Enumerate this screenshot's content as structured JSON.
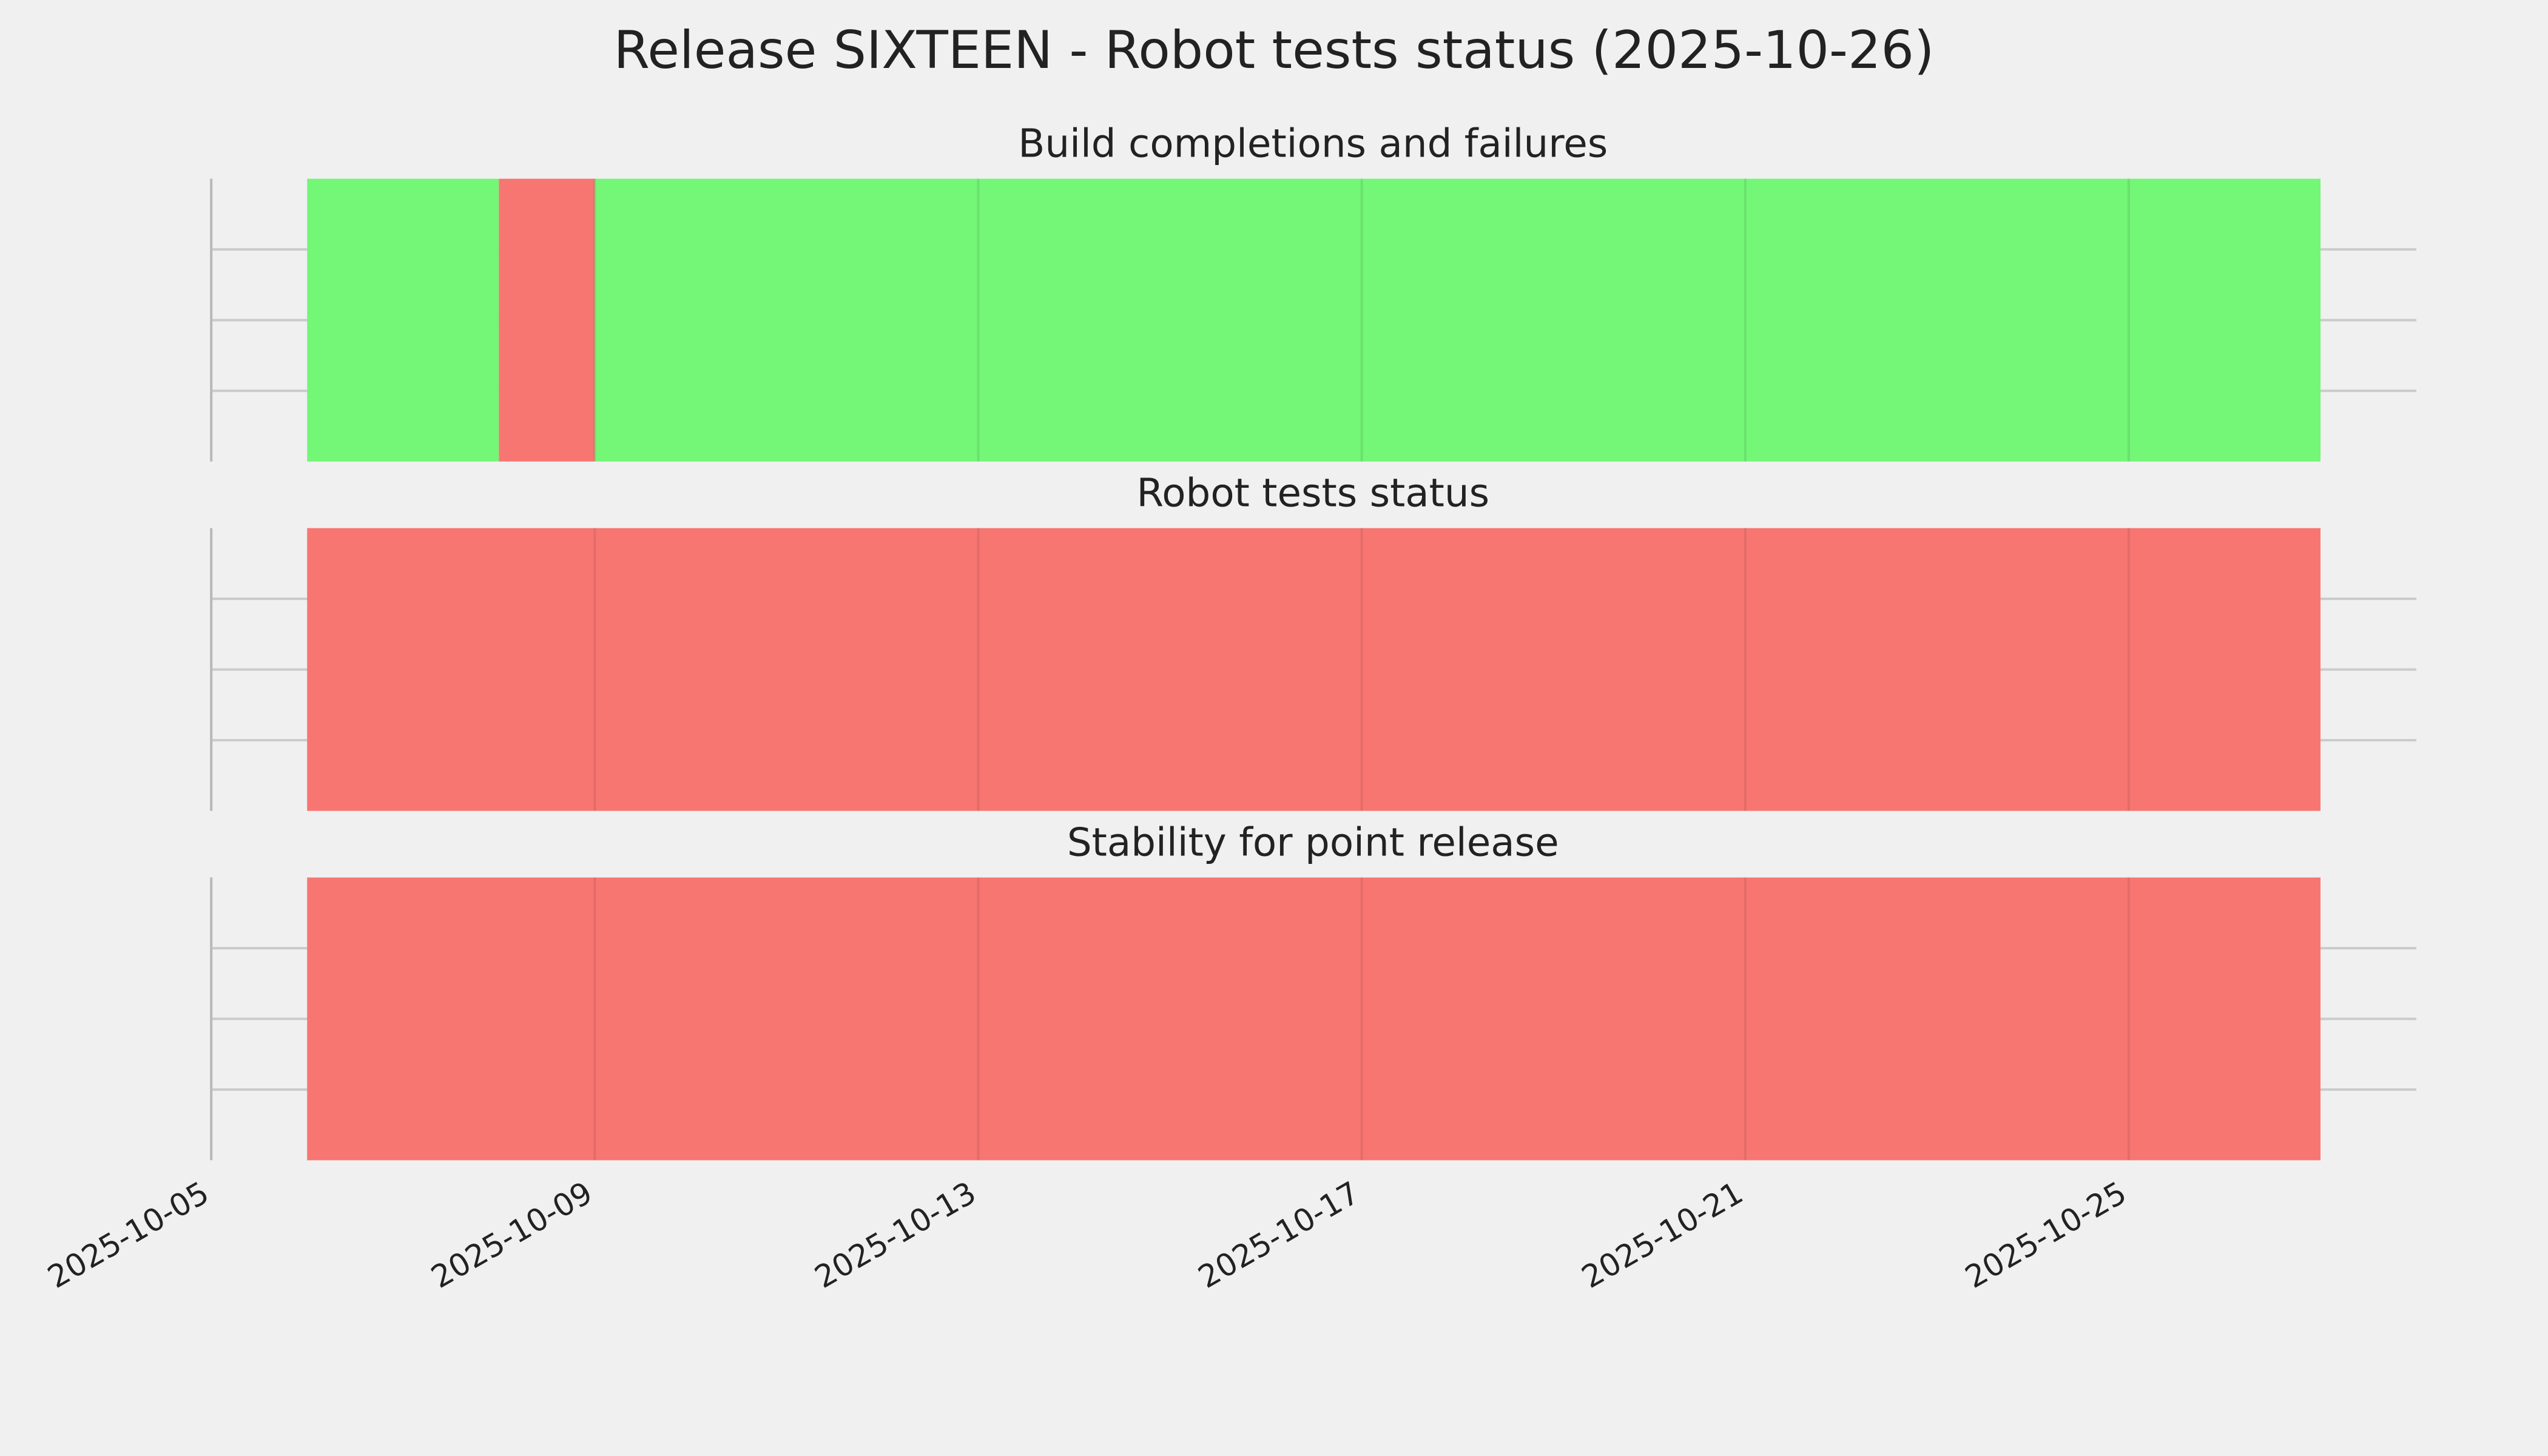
{
  "title": "Release SIXTEEN - Robot tests status (2025-10-26)",
  "chart_data": [
    {
      "type": "timeline",
      "title": "Build completions and failures",
      "segments": [
        {
          "start": "2025-10-06",
          "end": "2025-10-08",
          "color": "#74f677"
        },
        {
          "start": "2025-10-08",
          "end": "2025-10-09",
          "color": "#f77672"
        },
        {
          "start": "2025-10-09",
          "end": "2025-10-27",
          "color": "#74f677"
        }
      ],
      "xlim": [
        "2025-10-05",
        "2025-10-28"
      ],
      "xticks": [
        "2025-10-05",
        "2025-10-09",
        "2025-10-13",
        "2025-10-17",
        "2025-10-21",
        "2025-10-25"
      ],
      "ylim": [
        0,
        1
      ],
      "yticks": [
        0.25,
        0.5,
        0.75
      ],
      "grid": true
    },
    {
      "type": "timeline",
      "title": "Robot tests status",
      "segments": [
        {
          "start": "2025-10-06",
          "end": "2025-10-27",
          "color": "#f77672"
        }
      ],
      "xlim": [
        "2025-10-05",
        "2025-10-28"
      ],
      "xticks": [
        "2025-10-05",
        "2025-10-09",
        "2025-10-13",
        "2025-10-17",
        "2025-10-21",
        "2025-10-25"
      ],
      "ylim": [
        0,
        1
      ],
      "yticks": [
        0.25,
        0.5,
        0.75
      ],
      "grid": true
    },
    {
      "type": "timeline",
      "title": "Stability for point release",
      "segments": [
        {
          "start": "2025-10-06",
          "end": "2025-10-27",
          "color": "#f77672"
        }
      ],
      "xlim": [
        "2025-10-05",
        "2025-10-28"
      ],
      "xticks": [
        "2025-10-05",
        "2025-10-09",
        "2025-10-13",
        "2025-10-17",
        "2025-10-21",
        "2025-10-25"
      ],
      "ylim": [
        0,
        1
      ],
      "yticks": [
        0.25,
        0.5,
        0.75
      ],
      "grid": true
    }
  ]
}
